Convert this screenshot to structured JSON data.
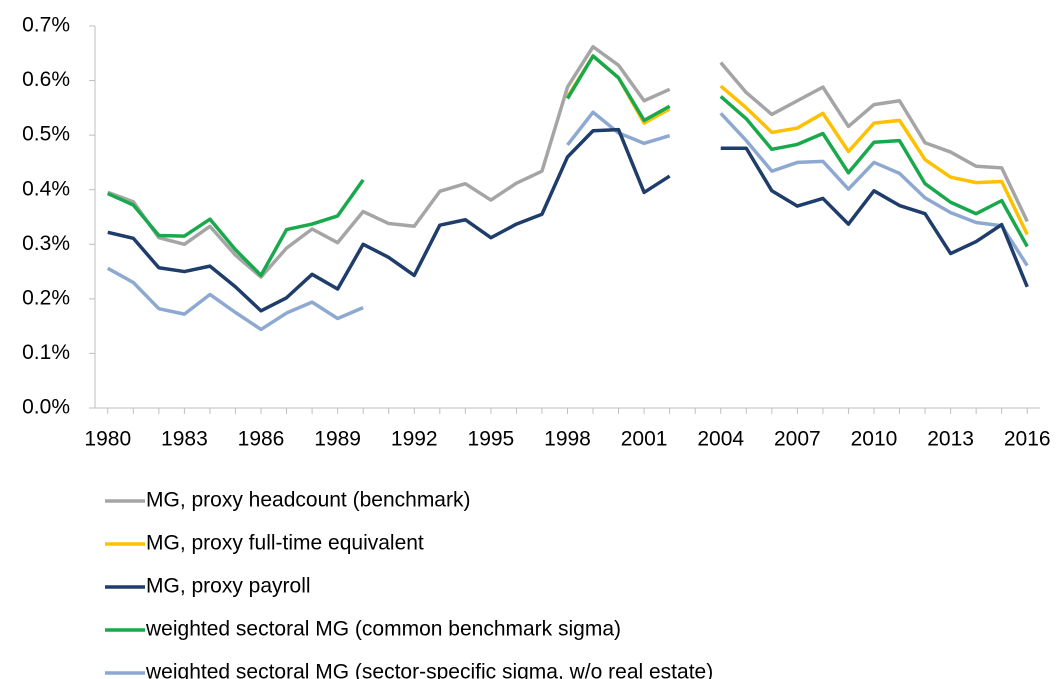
{
  "chart_data": {
    "type": "line",
    "x": [
      1980,
      1981,
      1982,
      1983,
      1984,
      1985,
      1986,
      1987,
      1988,
      1989,
      1990,
      1991,
      1992,
      1993,
      1994,
      1995,
      1996,
      1997,
      1998,
      1999,
      2000,
      2001,
      2002,
      2003,
      2004,
      2005,
      2006,
      2007,
      2008,
      2009,
      2010,
      2011,
      2012,
      2013,
      2014,
      2015,
      2016
    ],
    "xlim": [
      1979.5,
      2016.5
    ],
    "xticks": [
      1980,
      1983,
      1986,
      1989,
      1992,
      1995,
      1998,
      2001,
      2004,
      2007,
      2010,
      2013,
      2016
    ],
    "ylim": [
      0,
      0.7
    ],
    "yticks": [
      {
        "value": 0,
        "label": "0.0%"
      },
      {
        "value": 0.1,
        "label": "0.1%"
      },
      {
        "value": 0.2,
        "label": "0.2%"
      },
      {
        "value": 0.3,
        "label": "0.3%"
      },
      {
        "value": 0.4,
        "label": "0.4%"
      },
      {
        "value": 0.5,
        "label": "0.5%"
      },
      {
        "value": 0.6,
        "label": "0.6%"
      },
      {
        "value": 0.7,
        "label": "0.7%"
      }
    ],
    "series": [
      {
        "name": "MG, proxy headcount (benchmark)",
        "color": "#a5a5a5",
        "values": [
          0.395,
          0.378,
          0.312,
          0.3,
          0.333,
          0.28,
          0.24,
          0.293,
          0.328,
          0.303,
          0.36,
          0.338,
          0.333,
          0.397,
          0.411,
          0.381,
          0.412,
          0.434,
          0.588,
          0.662,
          0.628,
          0.563,
          0.584,
          null,
          0.633,
          0.578,
          0.538,
          0.563,
          0.588,
          0.516,
          0.556,
          0.563,
          0.486,
          0.469,
          0.443,
          0.44,
          0.342
        ]
      },
      {
        "name": "MG, proxy full-time equivalent",
        "color": "#ffc000",
        "values": [
          null,
          null,
          null,
          null,
          null,
          null,
          null,
          null,
          null,
          null,
          null,
          null,
          null,
          null,
          null,
          null,
          null,
          null,
          0.57,
          0.645,
          0.605,
          0.522,
          0.548,
          null,
          0.59,
          0.55,
          0.505,
          0.513,
          0.54,
          0.47,
          0.522,
          0.527,
          0.455,
          0.423,
          0.413,
          0.415,
          0.318
        ]
      },
      {
        "name": "MG, proxy payroll",
        "color": "#1f3d6b",
        "values": [
          0.322,
          0.311,
          0.257,
          0.25,
          0.26,
          0.222,
          0.178,
          0.202,
          0.245,
          0.218,
          0.3,
          0.276,
          0.243,
          0.335,
          0.345,
          0.312,
          0.337,
          0.355,
          0.46,
          0.508,
          0.51,
          0.395,
          0.425,
          null,
          0.476,
          0.476,
          0.398,
          0.37,
          0.384,
          0.337,
          0.398,
          0.371,
          0.356,
          0.283,
          0.305,
          0.336,
          0.222
        ]
      },
      {
        "name": "weighted sectoral MG (common benchmark sigma)",
        "color": "#19a84c",
        "values": [
          0.393,
          0.372,
          0.316,
          0.315,
          0.346,
          0.29,
          0.243,
          0.327,
          0.337,
          0.352,
          0.418,
          null,
          null,
          null,
          null,
          null,
          null,
          null,
          0.567,
          0.645,
          0.605,
          0.527,
          0.553,
          null,
          0.571,
          0.53,
          0.474,
          0.483,
          0.503,
          0.431,
          0.487,
          0.49,
          0.411,
          0.377,
          0.356,
          0.38,
          0.296
        ]
      },
      {
        "name": "weighted sectoral MG (sector-specific sigma, w/o real estate)",
        "color": "#8ea9d1",
        "values": [
          0.256,
          0.23,
          0.182,
          0.172,
          0.208,
          0.175,
          0.144,
          0.174,
          0.194,
          0.164,
          0.184,
          null,
          null,
          null,
          null,
          null,
          null,
          null,
          0.482,
          0.542,
          0.504,
          0.485,
          0.499,
          null,
          0.54,
          0.49,
          0.434,
          0.45,
          0.452,
          0.401,
          0.45,
          0.43,
          0.385,
          0.358,
          0.34,
          0.334,
          0.261
        ]
      }
    ],
    "legend": "bottom"
  }
}
